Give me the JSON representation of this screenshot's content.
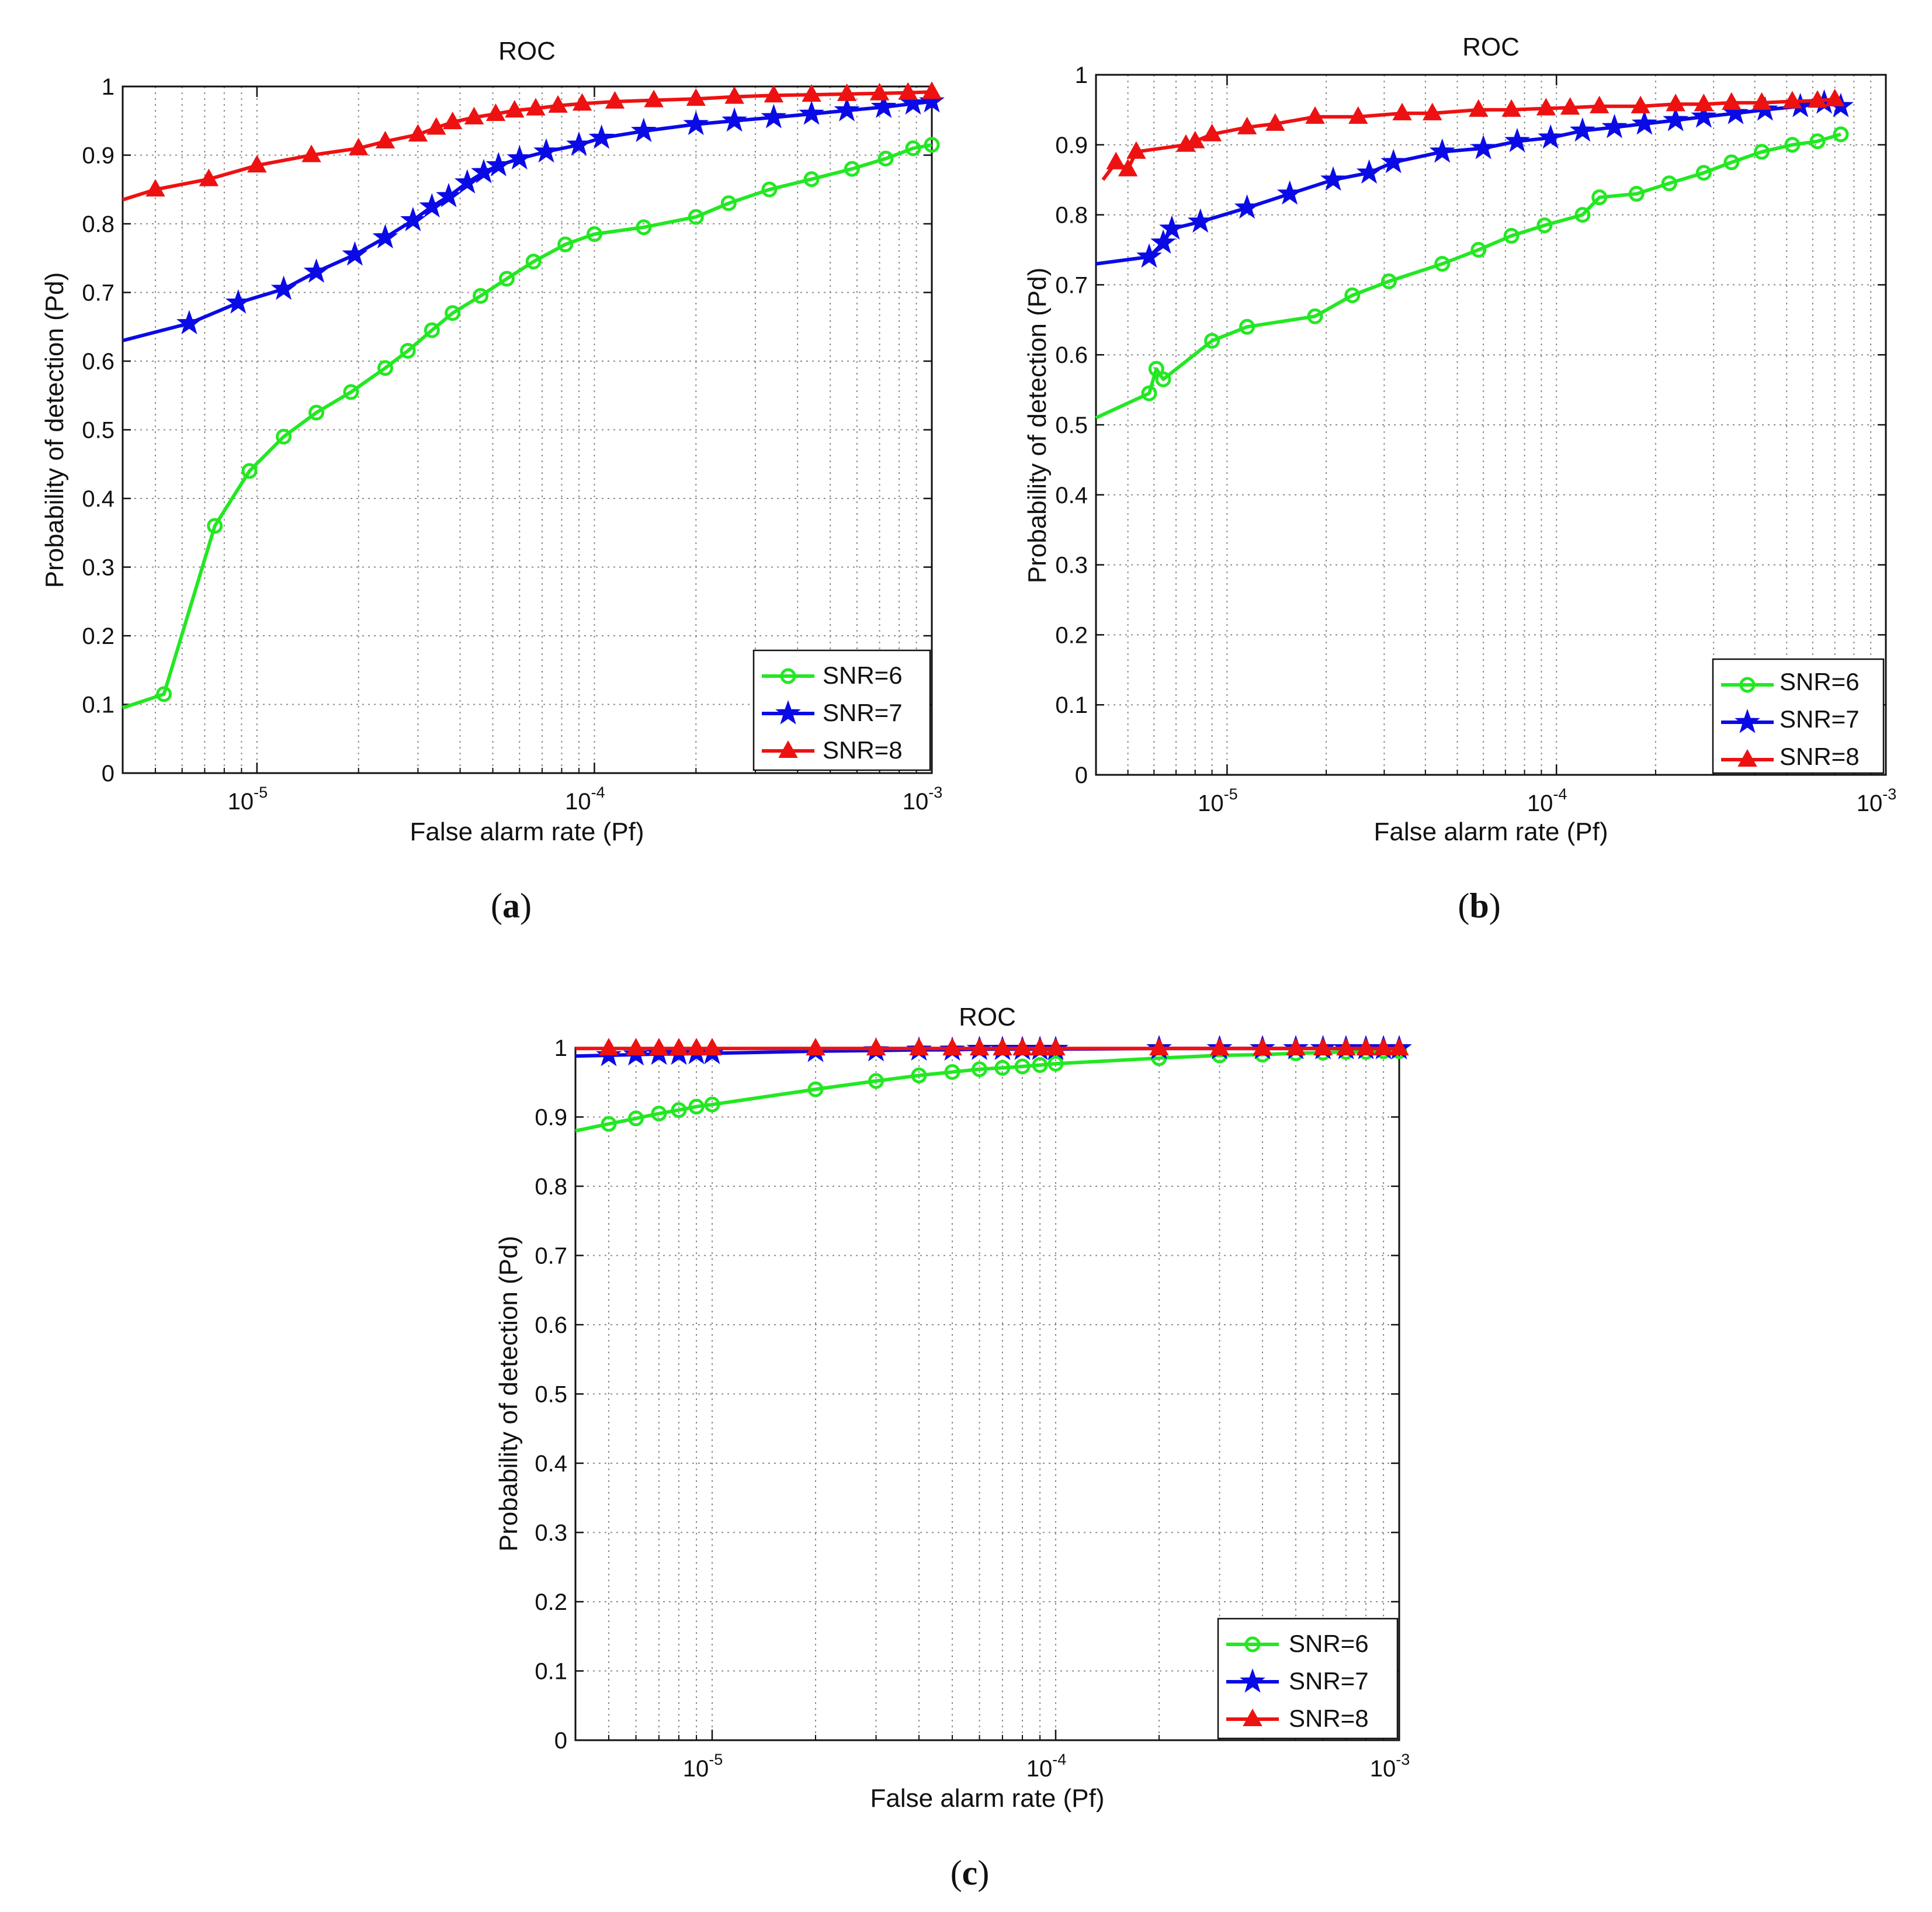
{
  "figure": {
    "captions": [
      "(a)",
      "(b)",
      "(c)"
    ],
    "caption_letters": [
      "a",
      "b",
      "c"
    ]
  },
  "colors": {
    "SNR=6": "#22e822",
    "SNR=7": "#0a0ae6",
    "SNR=8": "#ee1111"
  },
  "chart_data": [
    {
      "id": "a",
      "type": "line",
      "title": "ROC",
      "xlabel": "False alarm rate (Pf)",
      "ylabel": "Probability of detection (Pd)",
      "xscale": "log",
      "xlim": [
        4e-06,
        0.001
      ],
      "ylim": [
        0,
        1
      ],
      "xtick_labels": [
        "10^-5",
        "10^-4",
        "10^-3"
      ],
      "ytick_labels": [
        "0",
        "0.1",
        "0.2",
        "0.3",
        "0.4",
        "0.5",
        "0.6",
        "0.7",
        "0.8",
        "0.9",
        "1"
      ],
      "grid": true,
      "legend": {
        "position": "bottom-right",
        "entries": [
          "SNR=6",
          "SNR=7",
          "SNR=8"
        ]
      },
      "series": [
        {
          "name": "SNR=6",
          "marker": "circle",
          "x": [
            4e-06,
            5.3e-06,
            7.5e-06,
            9.5e-06,
            1.2e-05,
            1.5e-05,
            1.9e-05,
            2.4e-05,
            2.8e-05,
            3.3e-05,
            3.8e-05,
            4.6e-05,
            5.5e-05,
            6.6e-05,
            8.2e-05,
            0.0001,
            0.00014,
            0.0002,
            0.00025,
            0.00033,
            0.00044,
            0.00058,
            0.00073,
            0.00088,
            0.001
          ],
          "y": [
            0.095,
            0.115,
            0.36,
            0.44,
            0.49,
            0.525,
            0.555,
            0.59,
            0.615,
            0.645,
            0.67,
            0.695,
            0.72,
            0.745,
            0.77,
            0.785,
            0.795,
            0.81,
            0.83,
            0.85,
            0.865,
            0.88,
            0.895,
            0.91,
            0.915
          ]
        },
        {
          "name": "SNR=7",
          "marker": "star",
          "x": [
            4e-06,
            6.3e-06,
            8.8e-06,
            1.2e-05,
            1.5e-05,
            1.95e-05,
            2.4e-05,
            2.9e-05,
            3.3e-05,
            3.7e-05,
            4.2e-05,
            4.7e-05,
            5.2e-05,
            6e-05,
            7.2e-05,
            9e-05,
            0.000105,
            0.00014,
            0.0002,
            0.00026,
            0.00034,
            0.00044,
            0.00056,
            0.00072,
            0.00088,
            0.001
          ],
          "y": [
            0.63,
            0.655,
            0.685,
            0.705,
            0.73,
            0.755,
            0.78,
            0.805,
            0.825,
            0.84,
            0.86,
            0.875,
            0.885,
            0.895,
            0.905,
            0.915,
            0.925,
            0.935,
            0.945,
            0.95,
            0.955,
            0.96,
            0.965,
            0.97,
            0.975,
            0.978
          ]
        },
        {
          "name": "SNR=8",
          "marker": "triangle",
          "x": [
            4e-06,
            5e-06,
            7.2e-06,
            1e-05,
            1.45e-05,
            2e-05,
            2.4e-05,
            3e-05,
            3.4e-05,
            3.8e-05,
            4.4e-05,
            5.1e-05,
            5.8e-05,
            6.7e-05,
            7.8e-05,
            9.2e-05,
            0.000115,
            0.00015,
            0.0002,
            0.00026,
            0.00034,
            0.00044,
            0.00056,
            0.0007,
            0.00085,
            0.001
          ],
          "y": [
            0.835,
            0.85,
            0.865,
            0.885,
            0.9,
            0.91,
            0.92,
            0.93,
            0.94,
            0.948,
            0.955,
            0.96,
            0.965,
            0.968,
            0.972,
            0.975,
            0.978,
            0.98,
            0.982,
            0.985,
            0.987,
            0.988,
            0.989,
            0.99,
            0.991,
            0.992
          ]
        }
      ]
    },
    {
      "id": "b",
      "type": "line",
      "title": "ROC",
      "xlabel": "False alarm rate (Pf)",
      "ylabel": "Probability of detection (Pd)",
      "xscale": "log",
      "xlim": [
        4e-06,
        0.001
      ],
      "ylim": [
        0,
        1
      ],
      "xtick_labels": [
        "10^-5",
        "10^-4",
        "10^-3"
      ],
      "ytick_labels": [
        "0",
        "0.1",
        "0.2",
        "0.3",
        "0.4",
        "0.5",
        "0.6",
        "0.7",
        "0.8",
        "0.9",
        "1"
      ],
      "grid": true,
      "legend": {
        "position": "bottom-right",
        "entries": [
          "SNR=6",
          "SNR=7",
          "SNR=8"
        ]
      },
      "series": [
        {
          "name": "SNR=6",
          "marker": "circle",
          "x": [
            4e-06,
            5.8e-06,
            6.1e-06,
            6.4e-06,
            9e-06,
            1.15e-05,
            1.85e-05,
            2.4e-05,
            3.1e-05,
            4.5e-05,
            5.8e-05,
            7.3e-05,
            9.2e-05,
            0.00012,
            0.000135,
            0.000175,
            0.00022,
            0.00028,
            0.00034,
            0.00042,
            0.00052,
            0.00062,
            0.00073
          ],
          "y": [
            0.51,
            0.545,
            0.58,
            0.565,
            0.62,
            0.64,
            0.655,
            0.685,
            0.705,
            0.73,
            0.75,
            0.77,
            0.785,
            0.8,
            0.825,
            0.83,
            0.845,
            0.86,
            0.875,
            0.89,
            0.9,
            0.905,
            0.915
          ]
        },
        {
          "name": "SNR=7",
          "marker": "star",
          "x": [
            4e-06,
            5.8e-06,
            6.4e-06,
            6.8e-06,
            8.3e-06,
            1.15e-05,
            1.55e-05,
            2.1e-05,
            2.7e-05,
            3.2e-05,
            4.5e-05,
            6e-05,
            7.6e-05,
            9.6e-05,
            0.00012,
            0.00015,
            0.000185,
            0.00023,
            0.00028,
            0.00035,
            0.00043,
            0.00055,
            0.00065,
            0.00073
          ],
          "y": [
            0.73,
            0.74,
            0.76,
            0.78,
            0.79,
            0.81,
            0.83,
            0.85,
            0.86,
            0.875,
            0.89,
            0.895,
            0.905,
            0.91,
            0.92,
            0.925,
            0.93,
            0.935,
            0.94,
            0.945,
            0.95,
            0.955,
            0.96,
            0.955
          ]
        },
        {
          "name": "SNR=8",
          "marker": "triangle",
          "x": [
            4.2e-06,
            4.6e-06,
            5e-06,
            5.3e-06,
            7.5e-06,
            8e-06,
            9e-06,
            1.15e-05,
            1.4e-05,
            1.85e-05,
            2.5e-05,
            3.4e-05,
            4.2e-05,
            5.8e-05,
            7.3e-05,
            9.3e-05,
            0.00011,
            0.000135,
            0.00018,
            0.00023,
            0.00028,
            0.00034,
            0.00042,
            0.00052,
            0.00062,
            0.0007
          ],
          "y": [
            0.85,
            0.875,
            0.865,
            0.89,
            0.9,
            0.905,
            0.915,
            0.925,
            0.93,
            0.94,
            0.94,
            0.945,
            0.945,
            0.95,
            0.95,
            0.952,
            0.953,
            0.955,
            0.955,
            0.958,
            0.958,
            0.96,
            0.96,
            0.962,
            0.963,
            0.965
          ]
        }
      ]
    },
    {
      "id": "c",
      "type": "line",
      "title": "ROC",
      "xlabel": "False alarm rate (Pf)",
      "ylabel": "Probability of detection (Pd)",
      "xscale": "log",
      "xlim": [
        4e-06,
        0.001
      ],
      "ylim": [
        0,
        1
      ],
      "xtick_labels": [
        "10^-5",
        "10^-4",
        "10^-3"
      ],
      "ytick_labels": [
        "0",
        "0.1",
        "0.2",
        "0.3",
        "0.4",
        "0.5",
        "0.6",
        "0.7",
        "0.8",
        "0.9",
        "1"
      ],
      "grid": true,
      "legend": {
        "position": "bottom-right",
        "entries": [
          "SNR=6",
          "SNR=7",
          "SNR=8"
        ]
      },
      "series": [
        {
          "name": "SNR=6",
          "marker": "circle",
          "x": [
            4e-06,
            5e-06,
            6e-06,
            7e-06,
            8e-06,
            9e-06,
            1e-05,
            2e-05,
            3e-05,
            4e-05,
            5e-05,
            6e-05,
            7e-05,
            8e-05,
            9e-05,
            0.0001,
            0.0002,
            0.0003,
            0.0004,
            0.0005,
            0.0006,
            0.0007,
            0.0008,
            0.0009,
            0.001
          ],
          "y": [
            0.88,
            0.89,
            0.898,
            0.905,
            0.91,
            0.915,
            0.918,
            0.94,
            0.952,
            0.96,
            0.965,
            0.969,
            0.971,
            0.973,
            0.975,
            0.977,
            0.985,
            0.989,
            0.99,
            0.992,
            0.993,
            0.994,
            0.994,
            0.995,
            0.995
          ]
        },
        {
          "name": "SNR=7",
          "marker": "star",
          "x": [
            4e-06,
            5e-06,
            6e-06,
            7e-06,
            8e-06,
            9e-06,
            1e-05,
            2e-05,
            3e-05,
            4e-05,
            5e-05,
            6e-05,
            7e-05,
            8e-05,
            9e-05,
            0.0001,
            0.0002,
            0.0003,
            0.0004,
            0.0005,
            0.0006,
            0.0007,
            0.0008,
            0.0009,
            0.001
          ],
          "y": [
            0.988,
            0.989,
            0.99,
            0.991,
            0.991,
            0.992,
            0.992,
            0.995,
            0.996,
            0.997,
            0.997,
            0.998,
            0.998,
            0.998,
            0.998,
            0.998,
            0.999,
            0.999,
            0.999,
            0.999,
            0.999,
            0.999,
            0.999,
            0.999,
            0.999
          ]
        },
        {
          "name": "SNR=8",
          "marker": "triangle",
          "x": [
            4e-06,
            5e-06,
            6e-06,
            7e-06,
            8e-06,
            9e-06,
            1e-05,
            2e-05,
            3e-05,
            4e-05,
            5e-05,
            6e-05,
            7e-05,
            8e-05,
            9e-05,
            0.0001,
            0.0002,
            0.0003,
            0.0004,
            0.0005,
            0.0006,
            0.0007,
            0.0008,
            0.0009,
            0.001
          ],
          "y": [
            0.999,
            0.999,
            0.999,
            0.999,
            0.999,
            0.999,
            0.999,
            0.999,
            0.999,
            0.999,
            0.999,
            0.999,
            0.999,
            0.999,
            0.999,
            0.999,
            0.999,
            0.999,
            0.999,
            0.999,
            0.999,
            0.999,
            0.999,
            0.999,
            0.999
          ]
        }
      ]
    }
  ]
}
